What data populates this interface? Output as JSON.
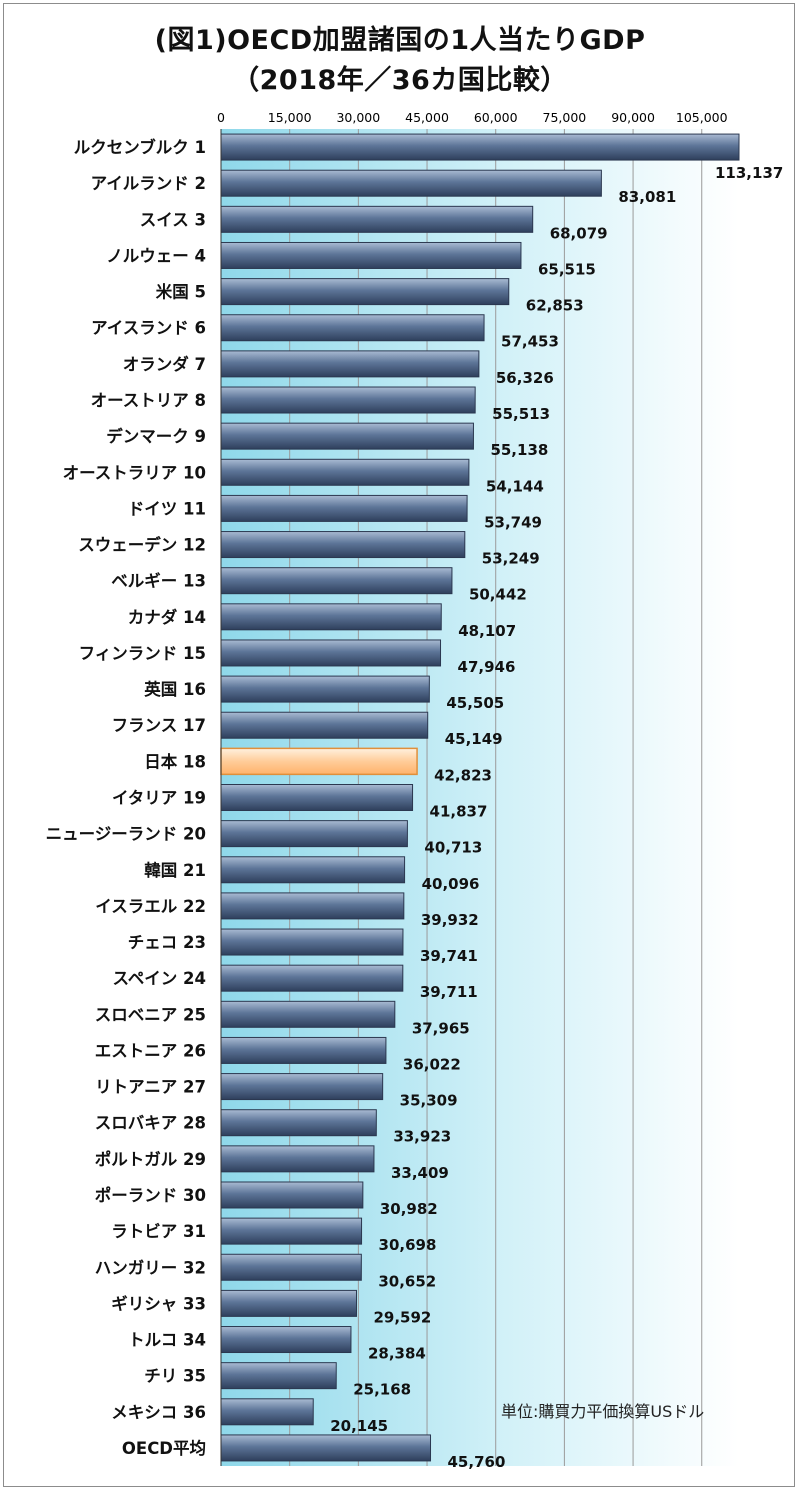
{
  "chart_data": {
    "type": "bar",
    "orientation": "horizontal",
    "title": "(図1)OECD加盟諸国の1人当たりGDP",
    "subtitle": "（2018年／36カ国比較）",
    "unit_note": "単位:購買力平価換算USドル",
    "xlim": [
      0,
      113137
    ],
    "x_ticks": [
      "0",
      "15,000",
      "30,000",
      "45,000",
      "60,000",
      "75,000",
      "90,000",
      "105,000"
    ],
    "tick_values": [
      0,
      15000,
      30000,
      45000,
      60000,
      75000,
      90000,
      105000
    ],
    "grid": true,
    "colors": {
      "bar": "#5d7598",
      "highlight": "#ffcc99",
      "highlight_border": "#e08f3a"
    },
    "highlight_index": 17,
    "categories": [
      "ルクセンブルク 1",
      "アイルランド 2",
      "スイス 3",
      "ノルウェー 4",
      "米国 5",
      "アイスランド 6",
      "オランダ 7",
      "オーストリア 8",
      "デンマーク 9",
      "オーストラリア 10",
      "ドイツ 11",
      "スウェーデン 12",
      "ベルギー 13",
      "カナダ 14",
      "フィンランド 15",
      "英国 16",
      "フランス 17",
      "日本 18",
      "イタリア 19",
      "ニュージーランド 20",
      "韓国 21",
      "イスラエル 22",
      "チェコ 23",
      "スペイン 24",
      "スロベニア 25",
      "エストニア 26",
      "リトアニア 27",
      "スロバキア 28",
      "ポルトガル 29",
      "ポーランド 30",
      "ラトビア 31",
      "ハンガリー 32",
      "ギリシャ 33",
      "トルコ 34",
      "チリ 35",
      "メキシコ 36",
      "OECD平均"
    ],
    "values": [
      113137,
      83081,
      68079,
      65515,
      62853,
      57453,
      56326,
      55513,
      55138,
      54144,
      53749,
      53249,
      50442,
      48107,
      47946,
      45505,
      45149,
      42823,
      41837,
      40713,
      40096,
      39932,
      39741,
      39711,
      37965,
      36022,
      35309,
      33923,
      33409,
      30982,
      30698,
      30652,
      29592,
      28384,
      25168,
      20145,
      45760
    ],
    "value_labels": [
      "113,137",
      "83,081",
      "68,079",
      "65,515",
      "62,853",
      "57,453",
      "56,326",
      "55,513",
      "55,138",
      "54,144",
      "53,749",
      "53,249",
      "50,442",
      "48,107",
      "47,946",
      "45,505",
      "45,149",
      "42,823",
      "41,837",
      "40,713",
      "40,096",
      "39,932",
      "39,741",
      "39,711",
      "37,965",
      "36,022",
      "35,309",
      "33,923",
      "33,409",
      "30,982",
      "30,698",
      "30,652",
      "29,592",
      "28,384",
      "25,168",
      "20,145",
      "45,760"
    ]
  }
}
